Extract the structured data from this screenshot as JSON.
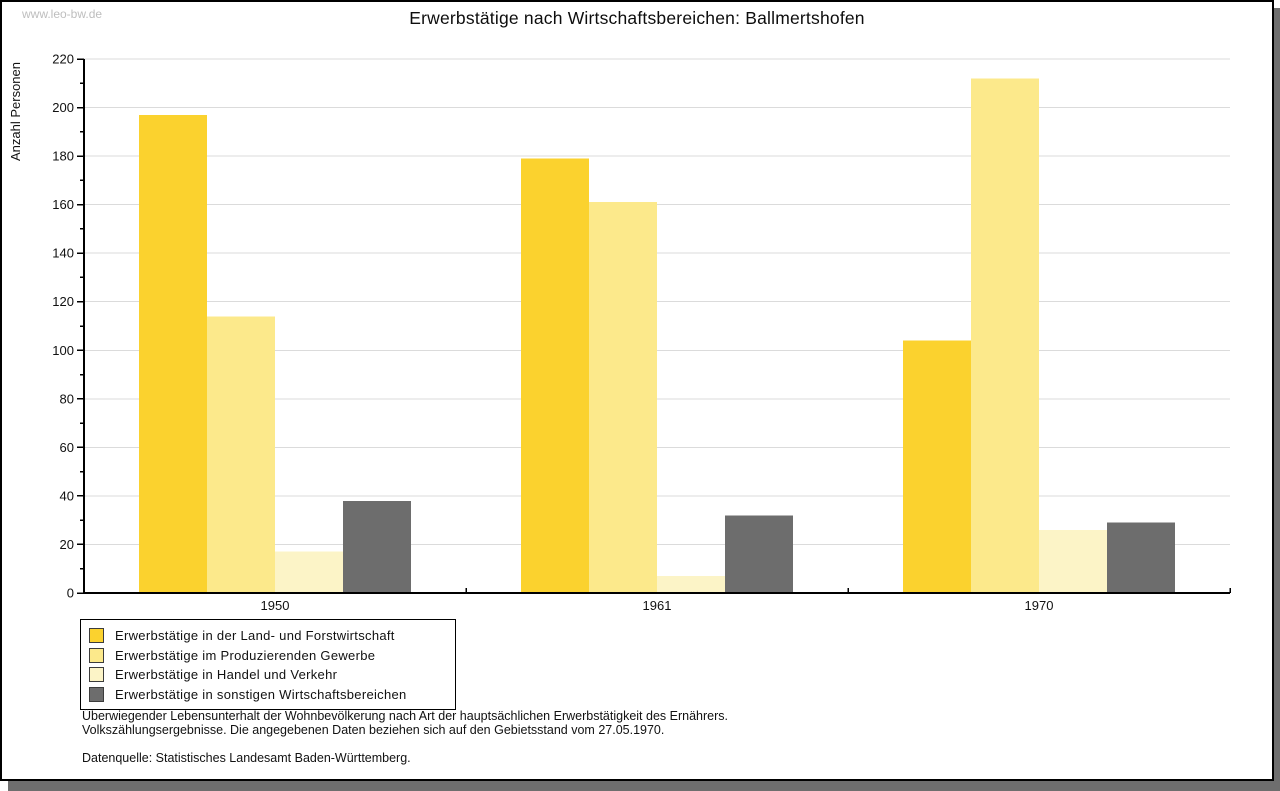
{
  "watermark": "www.leo-bw.de",
  "header": {
    "title": "Erwerbstätige nach Wirtschaftsbereichen: Ballmertshofen"
  },
  "chart_data": {
    "type": "bar",
    "title": "Erwerbstätige nach Wirtschaftsbereichen: Ballmertshofen",
    "xlabel": "",
    "ylabel": "Anzahl Personen",
    "categories": [
      "1950",
      "1961",
      "1970"
    ],
    "series": [
      {
        "name": "Erwerbstätige in der Land- und Forstwirtschaft",
        "color": "#FBD22E",
        "values": [
          197,
          179,
          104
        ]
      },
      {
        "name": "Erwerbstätige im Produzierenden Gewerbe",
        "color": "#FCE98B",
        "values": [
          114,
          161,
          212
        ]
      },
      {
        "name": "Erwerbstätige in Handel und Verkehr",
        "color": "#FCF4C7",
        "values": [
          17,
          7,
          26
        ]
      },
      {
        "name": "Erwerbstätige in sonstigen Wirtschaftsbereichen",
        "color": "#6D6D6D",
        "values": [
          38,
          32,
          29
        ]
      }
    ],
    "ylim": [
      0,
      220
    ],
    "ytick_step": 20,
    "ytick_minor_step": 10,
    "yticks": [
      0,
      20,
      40,
      60,
      80,
      100,
      120,
      140,
      160,
      180,
      200,
      220
    ],
    "grid": true,
    "gridline_color": "#DBDBDB",
    "legend_position": "bottom-left"
  },
  "footnotes": {
    "line1": "Überwiegender Lebensunterhalt der Wohnbevölkerung nach Art der hauptsächlichen Erwerbstätigkeit des Ernährers.",
    "line2": "Volkszählungsergebnisse. Die angegebenen Daten beziehen sich auf den Gebietsstand vom 27.05.1970.",
    "source": "Datenquelle: Statistisches Landesamt Baden-Württemberg."
  }
}
